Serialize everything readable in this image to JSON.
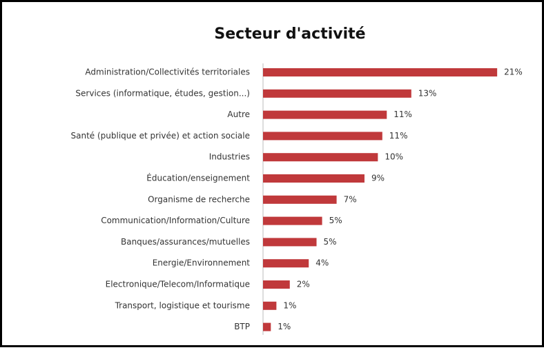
{
  "chart_data": {
    "type": "bar",
    "orientation": "horizontal",
    "title": "Secteur d'activité",
    "categories": [
      "Administration/Collectivités territoriales",
      "Services (informatique, études, gestion...)",
      "Autre",
      "Santé (publique et privée) et action sociale",
      "Industries",
      "Éducation/enseignement",
      "Organisme de recherche",
      "Communication/Information/Culture",
      "Banques/assurances/mutuelles",
      "Energie/Environnement",
      "Electronique/Telecom/Informatique",
      "Transport, logistique et tourisme",
      "BTP"
    ],
    "values": [
      21.0,
      13.3,
      11.1,
      10.7,
      10.3,
      9.1,
      6.6,
      5.3,
      4.8,
      4.1,
      2.4,
      1.2,
      0.7
    ],
    "value_labels": [
      "21%",
      "13%",
      "11%",
      "11%",
      "10%",
      "9%",
      "7%",
      "5%",
      "5%",
      "4%",
      "2%",
      "1%",
      "1%"
    ],
    "color": "#c0393b"
  }
}
